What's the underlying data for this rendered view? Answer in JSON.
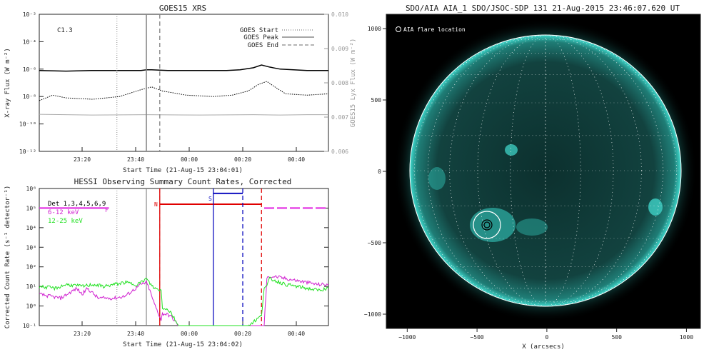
{
  "chart_data": [
    {
      "type": "line",
      "title": "GOES15 XRS",
      "xlabel": "Start Time (21-Aug-15 23:04:01)",
      "ylabel": "X-ray Flux (W m⁻²)",
      "ylabel_right": "GOES15 Lyx Flux (W m⁻²)",
      "x_ticks": [
        "23:20",
        "23:40",
        "00:00",
        "00:20",
        "00:40"
      ],
      "y_ticks": [
        "10⁻²",
        "10⁻⁴",
        "10⁻⁶",
        "10⁻⁸",
        "10⁻¹⁰",
        "10⁻¹²"
      ],
      "y_ticks_right": [
        "0.010",
        "0.009",
        "0.008",
        "0.007",
        "0.006"
      ],
      "ylim_log": [
        -12,
        -2
      ],
      "ylim_right": [
        0.006,
        0.01
      ],
      "xlim_minutes": [
        0,
        108
      ],
      "annotation": "C1.3",
      "legend": [
        "GOES Start",
        "GOES Peak",
        "GOES End"
      ],
      "legend_position": "top-right",
      "markers_minutes": {
        "start": 29,
        "peak": 40,
        "end": 45
      },
      "series": [
        {
          "x": [
            0,
            10,
            20,
            30,
            38,
            40,
            42,
            48,
            60,
            70,
            75,
            80,
            83,
            86,
            90,
            100,
            108
          ],
          "log_values": [
            -6.1,
            -6.15,
            -6.1,
            -6.1,
            -6.1,
            -6.05,
            -6.05,
            -6.1,
            -6.1,
            -6.1,
            -6.05,
            -5.9,
            -5.7,
            -5.85,
            -6.0,
            -6.1,
            -6.1
          ]
        },
        {
          "x": [
            0,
            5,
            10,
            20,
            30,
            38,
            42,
            46,
            55,
            65,
            72,
            78,
            82,
            85,
            88,
            92,
            100,
            108
          ],
          "log_values": [
            -8.3,
            -7.9,
            -8.1,
            -8.2,
            -8.0,
            -7.5,
            -7.3,
            -7.6,
            -7.9,
            -8.0,
            -7.9,
            -7.6,
            -7.1,
            -6.9,
            -7.3,
            -7.8,
            -7.9,
            -7.8
          ]
        },
        {
          "x": [
            0,
            20,
            40,
            60,
            80,
            90,
            100,
            108
          ],
          "values": [
            0.00708,
            0.00706,
            0.00707,
            0.00706,
            0.00707,
            0.00706,
            0.00707,
            0.00707
          ]
        }
      ]
    },
    {
      "type": "line",
      "title": "HESSI Observing Summary Count Rates, Corrected",
      "xlabel": "Start Time (21-Aug-15 23:04:02)",
      "ylabel": "Corrected Count Rate (s⁻¹ detector⁻¹)",
      "x_ticks": [
        "23:20",
        "23:40",
        "00:00",
        "00:20",
        "00:40"
      ],
      "y_ticks": [
        "10⁶",
        "10⁵",
        "10⁴",
        "10³",
        "10²",
        "10¹",
        "10⁰",
        "10⁻¹"
      ],
      "ylim_log": [
        -1,
        6
      ],
      "xlim_minutes": [
        0,
        108
      ],
      "legend": [
        "Det 1,3,4,5,6,9",
        "6-12 keV",
        "12-25 keV"
      ],
      "legend_position": "top-left",
      "flags": {
        "F": "F",
        "N": "N",
        "S": "S"
      },
      "markers_minutes": {
        "start": 29,
        "peak": 40,
        "end": 45,
        "s_start": 65,
        "s_end": 76,
        "n_start": 47,
        "n_end": 84
      },
      "series": [
        {
          "name": "6-12 keV",
          "x": [
            0,
            8,
            14,
            16,
            18,
            22,
            28,
            32,
            36,
            38,
            40,
            41,
            43,
            45.5,
            46,
            47,
            49,
            52,
            62,
            72,
            74,
            76,
            78,
            83,
            84,
            85,
            86,
            88,
            92,
            96,
            100,
            104,
            108
          ],
          "log_values": [
            0.6,
            0.4,
            0.9,
            0.6,
            0.9,
            0.4,
            0.4,
            0.5,
            0.9,
            1.1,
            1.2,
            0.9,
            0.1,
            -0.7,
            -0.4,
            -0.4,
            -0.5,
            -1,
            -1,
            -1,
            -1,
            -1,
            -1,
            -1,
            -1,
            1.4,
            1.5,
            1.5,
            1.4,
            1.3,
            1.2,
            1.1,
            1.1
          ]
        },
        {
          "name": "12-25 keV",
          "x": [
            0,
            6,
            10,
            16,
            20,
            24,
            28,
            32,
            36,
            38,
            40,
            41,
            43,
            45.5,
            46,
            47,
            49,
            52,
            62,
            72,
            74,
            76,
            78,
            83,
            84,
            85,
            86,
            88,
            92,
            96,
            100,
            104,
            108
          ],
          "log_values": [
            1.0,
            0.9,
            1.1,
            1.0,
            1.1,
            1.0,
            1.1,
            1.2,
            1.1,
            1.2,
            1.4,
            1.2,
            0.9,
            0.8,
            -0.1,
            -0.1,
            -0.3,
            -1,
            -1,
            -1,
            -1,
            -1,
            -1,
            -0.5,
            1.0,
            1.0,
            1.4,
            1.3,
            1.1,
            1.0,
            0.9,
            0.8,
            0.9
          ]
        },
        {
          "name": "attenuator-state",
          "x": [
            0,
            26,
            47,
            84,
            108
          ],
          "log_values": [
            5.0,
            5.0,
            5.2,
            5.0,
            5.0
          ]
        }
      ]
    },
    {
      "type": "image",
      "title": "SDO/AIA AIA_1 SDO/JSOC-SDP 131 21-Aug-2015 23:46:07.620 UT",
      "xlabel": "X (arcsecs)",
      "ylabel": "",
      "x_ticks": [
        "−1000",
        "−500",
        "0",
        "500",
        "1000"
      ],
      "y_ticks": [
        "1000",
        "500",
        "0",
        "−500",
        "−1000"
      ],
      "xlim": [
        -1150,
        1100
      ],
      "ylim": [
        -1100,
        1100
      ],
      "legend": [
        "AIA flare location"
      ],
      "legend_position": "top-left",
      "flare_location": {
        "x": -400,
        "y": -360
      },
      "solar_radius_arcsec": 950,
      "colors": {
        "disk": "#0f3b38",
        "limb": "#3fd8cc",
        "background": "#000000"
      }
    }
  ]
}
